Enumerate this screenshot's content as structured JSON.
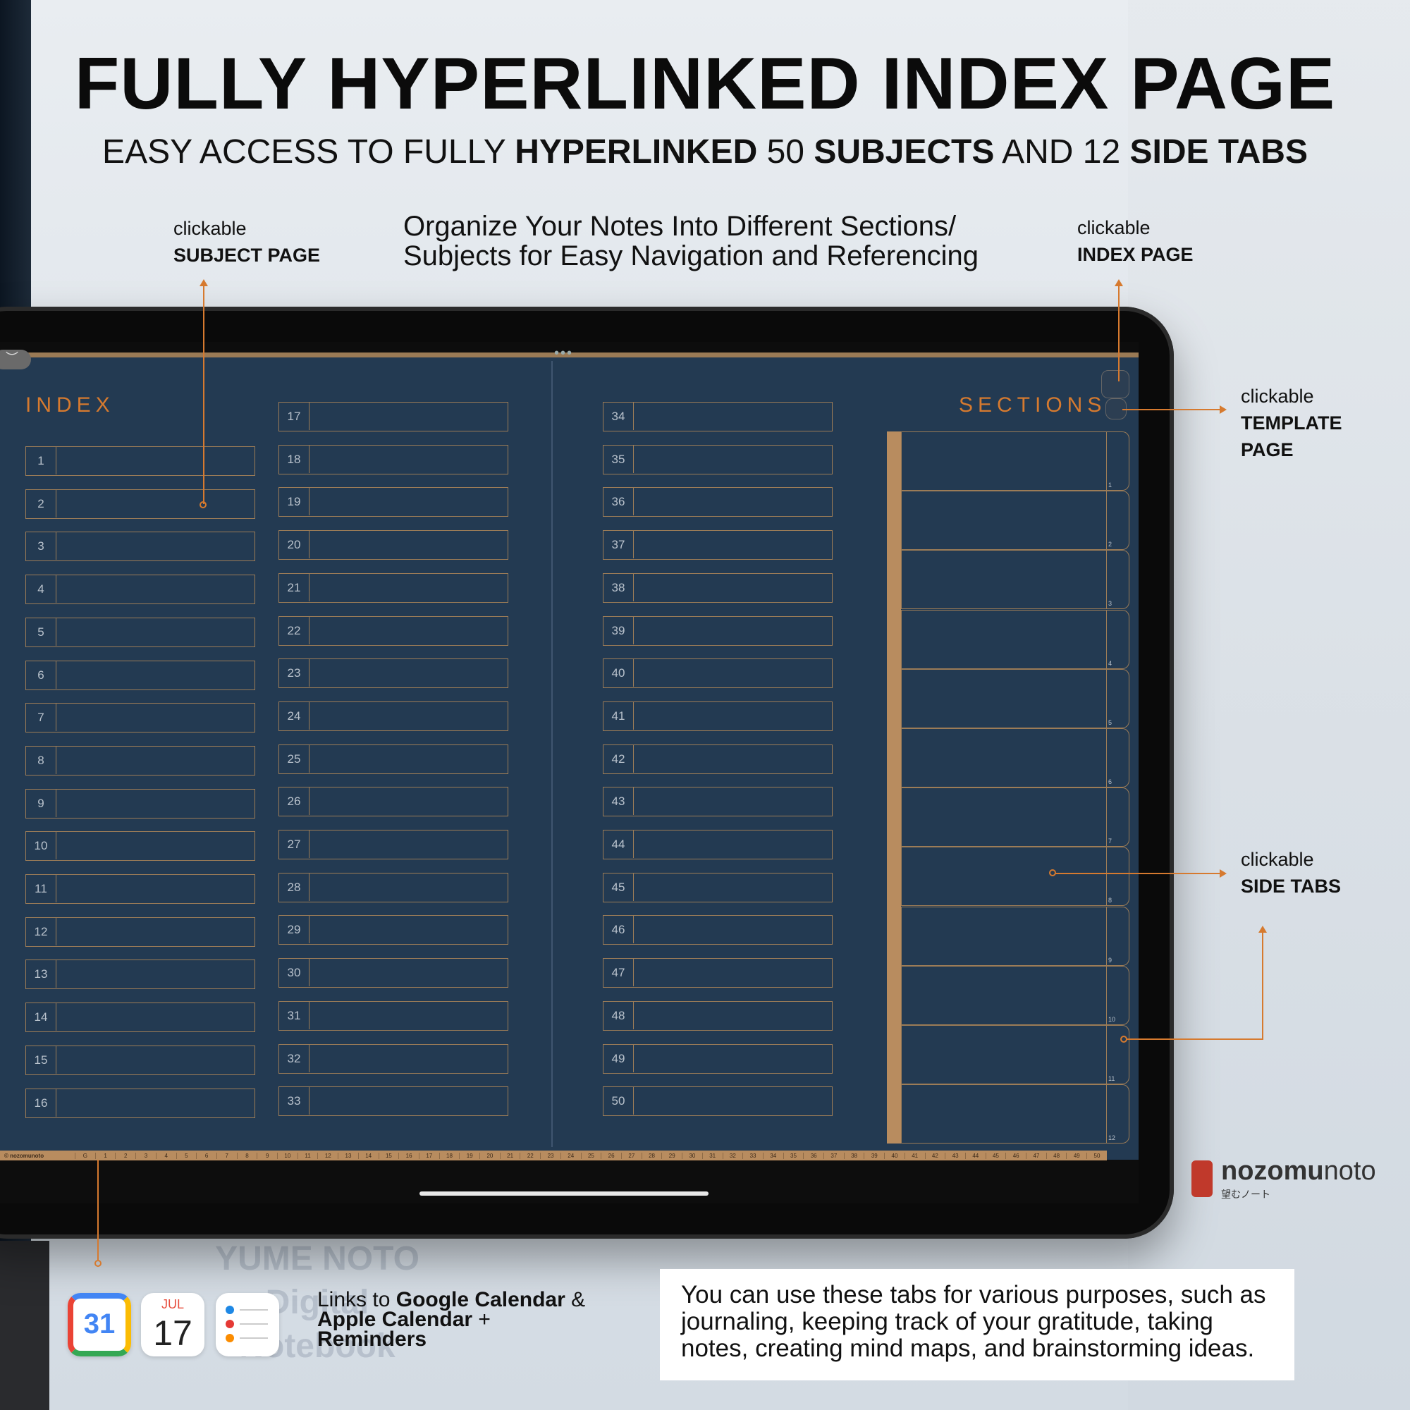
{
  "headline": "FULLY HYPERLINKED INDEX PAGE",
  "subhead": {
    "p1": "EASY ACCESS TO FULLY ",
    "b1": "HYPERLINKED",
    "p2": " 50 ",
    "b2": "SUBJECTS",
    "p3": " AND 12 ",
    "b3": "SIDE TABS"
  },
  "callouts": {
    "subject": {
      "line1": "clickable",
      "line2": "SUBJECT PAGE"
    },
    "index": {
      "line1": "clickable",
      "line2": "INDEX PAGE"
    },
    "template": {
      "line1": "clickable",
      "line2": "TEMPLATE",
      "line3": "PAGE"
    },
    "sidetabs": {
      "line1": "clickable",
      "line2": "SIDE TABS"
    }
  },
  "organize": {
    "line1": "Organize Your Notes Into Different Sections/",
    "line2": "Subjects for Easy Navigation and Referencing"
  },
  "notebook": {
    "index_title": "INDEX",
    "sections_title": "SECTIONS",
    "col1": [
      "1",
      "2",
      "3",
      "4",
      "5",
      "6",
      "7",
      "8",
      "9",
      "10",
      "11",
      "12",
      "13",
      "14",
      "15",
      "16"
    ],
    "col2": [
      "17",
      "18",
      "19",
      "20",
      "21",
      "22",
      "23",
      "24",
      "25",
      "26",
      "27",
      "28",
      "29",
      "30",
      "31",
      "32",
      "33"
    ],
    "col3": [
      "34",
      "35",
      "36",
      "37",
      "38",
      "39",
      "40",
      "41",
      "42",
      "43",
      "44",
      "45",
      "46",
      "47",
      "48",
      "49",
      "50"
    ],
    "section_tabs": [
      "1",
      "2",
      "3",
      "4",
      "5",
      "6",
      "7",
      "8",
      "9",
      "10",
      "11",
      "12"
    ],
    "ruler_brand": "© nozomunoto",
    "ruler_home": "G",
    "ruler_nums": [
      "1",
      "2",
      "3",
      "4",
      "5",
      "6",
      "7",
      "8",
      "9",
      "10",
      "11",
      "12",
      "13",
      "14",
      "15",
      "16",
      "17",
      "18",
      "19",
      "20",
      "21",
      "22",
      "23",
      "24",
      "25",
      "26",
      "27",
      "28",
      "29",
      "30",
      "31",
      "32",
      "33",
      "34",
      "35",
      "36",
      "37",
      "38",
      "39",
      "40",
      "41",
      "42",
      "43",
      "44",
      "45",
      "46",
      "47",
      "48",
      "49",
      "50"
    ],
    "dots": "•••",
    "back": "︶"
  },
  "apps": {
    "gcal_day": "31",
    "acal_month": "JUL",
    "acal_day": "17"
  },
  "links": {
    "p1": "Links to ",
    "b1": "Google Calendar",
    "p2": " &",
    "b2": "Apple Calendar",
    "p3": " +",
    "b3": "Reminders"
  },
  "note": "You can use these tabs for various purposes, such as journaling, keeping track of your gratitude, taking notes, creating mind maps, and brainstorming ideas.",
  "logo": {
    "bold": "nozomu",
    "light": "noto",
    "kana": "望むノート"
  },
  "background_text": {
    "line1": "YUME NOTO",
    "line2": "Digital",
    "line3": "Notebook"
  },
  "colors": {
    "accent": "#d67a2f",
    "page": "#233a52",
    "gold": "#b88c5f"
  }
}
